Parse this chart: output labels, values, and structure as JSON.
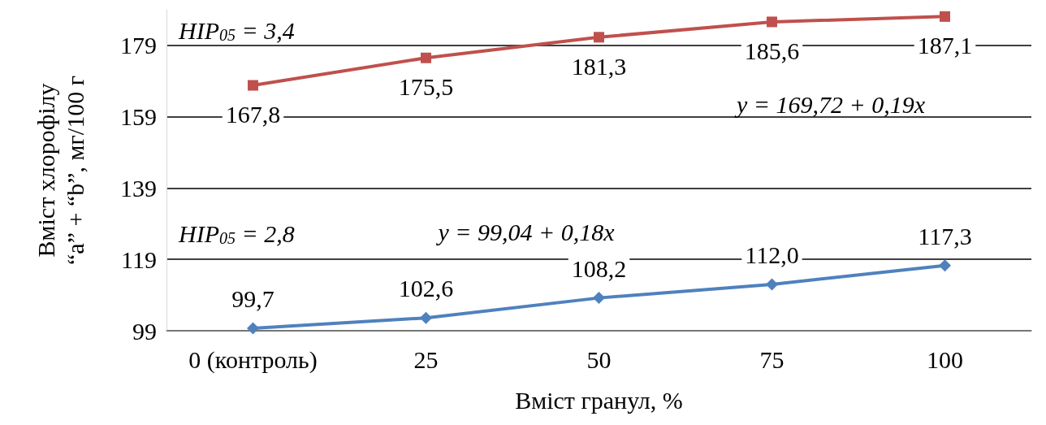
{
  "chart_data": {
    "type": "line",
    "xlabel": "Вміст гранул, %",
    "ylabel": "Вміст хлорофілу\n“a” + “b”, мг/100 г",
    "categories": [
      "0 (контроль)",
      "25",
      "50",
      "75",
      "100"
    ],
    "series": [
      {
        "color": "#c0504d",
        "marker": "square",
        "values": [
          167.8,
          175.5,
          181.3,
          185.6,
          187.1
        ],
        "value_labels": [
          "167,8",
          "175,5",
          "181,3",
          "185,6",
          "187,1"
        ]
      },
      {
        "color": "#4f81bd",
        "marker": "diamond",
        "values": [
          99.7,
          102.6,
          108.2,
          112.0,
          117.3
        ],
        "value_labels": [
          "99,7",
          "102,6",
          "108,2",
          "112,0",
          "117,3"
        ]
      }
    ],
    "ylim": [
      99,
      189
    ],
    "yticks": [
      99,
      119,
      139,
      159,
      179
    ],
    "grid": "y",
    "annotations": [
      "HIP$_{05}$ = 3,4",
      "y = 169,72 + 0,19x",
      "HIP$_{05}$ = 2,8",
      "y = 99,04 + 0,18x"
    ]
  }
}
